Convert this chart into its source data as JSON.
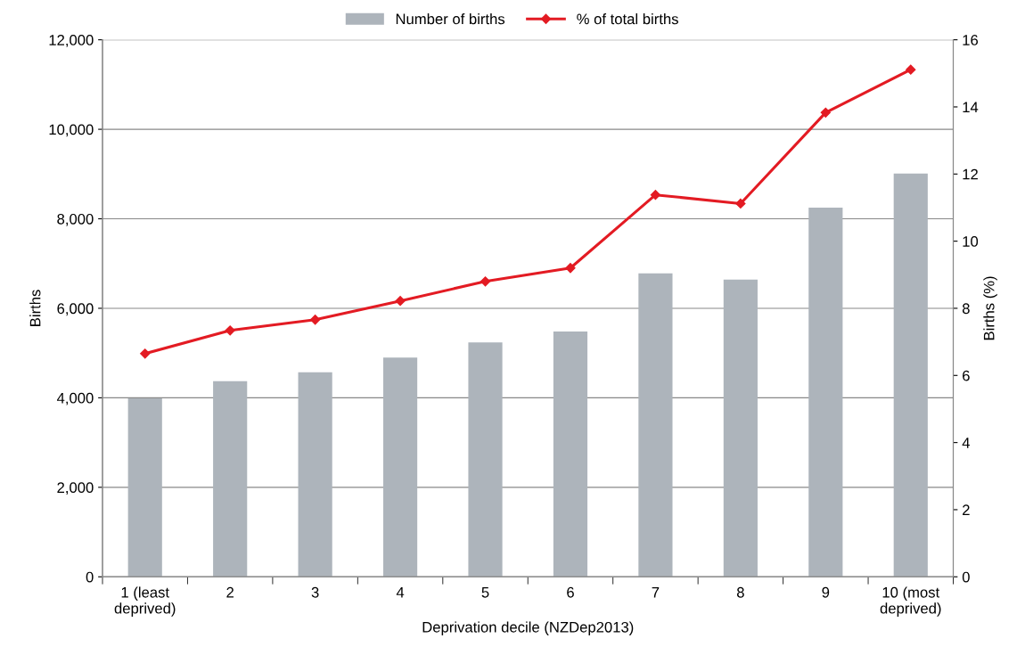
{
  "chart_data": {
    "type": "bar",
    "xlabel": "Deprivation decile (NZDep2013)",
    "ylabel": "Births",
    "y2label": "Births (%)",
    "categories": [
      "1 (least\ndeprived)",
      "2",
      "3",
      "4",
      "5",
      "6",
      "7",
      "8",
      "9",
      "10 (most\ndeprived)"
    ],
    "series": [
      {
        "name": "Number of births",
        "color": "#adb4bb",
        "values": [
          3990,
          4370,
          4570,
          4900,
          5240,
          5480,
          6780,
          6640,
          8250,
          9010
        ]
      },
      {
        "name": "% of total births",
        "type": "line",
        "axis": "y2",
        "color": "#e31b23",
        "marker": "diamond",
        "values": [
          6.65,
          7.34,
          7.66,
          8.22,
          8.8,
          9.2,
          11.38,
          11.12,
          13.83,
          15.11
        ]
      }
    ],
    "ylim": [
      0,
      12000
    ],
    "yticks": [
      {
        "value": 0,
        "label": "0"
      },
      {
        "value": 2000,
        "label": "2,000"
      },
      {
        "value": 4000,
        "label": "4,000"
      },
      {
        "value": 6000,
        "label": "6,000"
      },
      {
        "value": 8000,
        "label": "8,000"
      },
      {
        "value": 10000,
        "label": "10,000"
      },
      {
        "value": 12000,
        "label": "12,000"
      }
    ],
    "y2lim": [
      0,
      16
    ],
    "y2ticks": [
      0,
      2,
      4,
      6,
      8,
      10,
      12,
      14,
      16
    ],
    "grid": "y",
    "legend": "top"
  }
}
